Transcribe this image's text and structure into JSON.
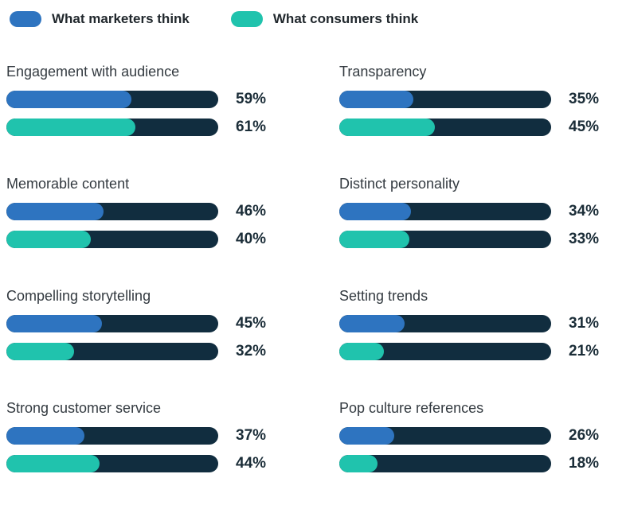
{
  "legend": {
    "marketers": {
      "label": "What marketers think"
    },
    "consumers": {
      "label": "What consumers think"
    }
  },
  "chart_data": {
    "type": "bar",
    "orientation": "horizontal",
    "value_range": [
      0,
      100
    ],
    "grid": false,
    "legend_position": "top",
    "series_names": [
      "What marketers think",
      "What consumers think"
    ],
    "colors": {
      "marketers": "#2e74c0",
      "consumers": "#20c3ad",
      "track": "#112d3f"
    },
    "groups": [
      {
        "category": "Engagement with audience",
        "values": [
          59,
          61
        ],
        "labels": [
          "59%",
          "61%"
        ]
      },
      {
        "category": "Memorable content",
        "values": [
          46,
          40
        ],
        "labels": [
          "46%",
          "40%"
        ]
      },
      {
        "category": "Compelling storytelling",
        "values": [
          45,
          32
        ],
        "labels": [
          "45%",
          "32%"
        ]
      },
      {
        "category": "Strong customer service",
        "values": [
          37,
          44
        ],
        "labels": [
          "37%",
          "44%"
        ]
      },
      {
        "category": "Transparency",
        "values": [
          35,
          45
        ],
        "labels": [
          "35%",
          "45%"
        ]
      },
      {
        "category": "Distinct personality",
        "values": [
          34,
          33
        ],
        "labels": [
          "34%",
          "33%"
        ]
      },
      {
        "category": "Setting trends",
        "values": [
          31,
          21
        ],
        "labels": [
          "31%",
          "21%"
        ]
      },
      {
        "category": "Pop culture references",
        "values": [
          26,
          18
        ],
        "labels": [
          "26%",
          "18%"
        ]
      }
    ]
  }
}
